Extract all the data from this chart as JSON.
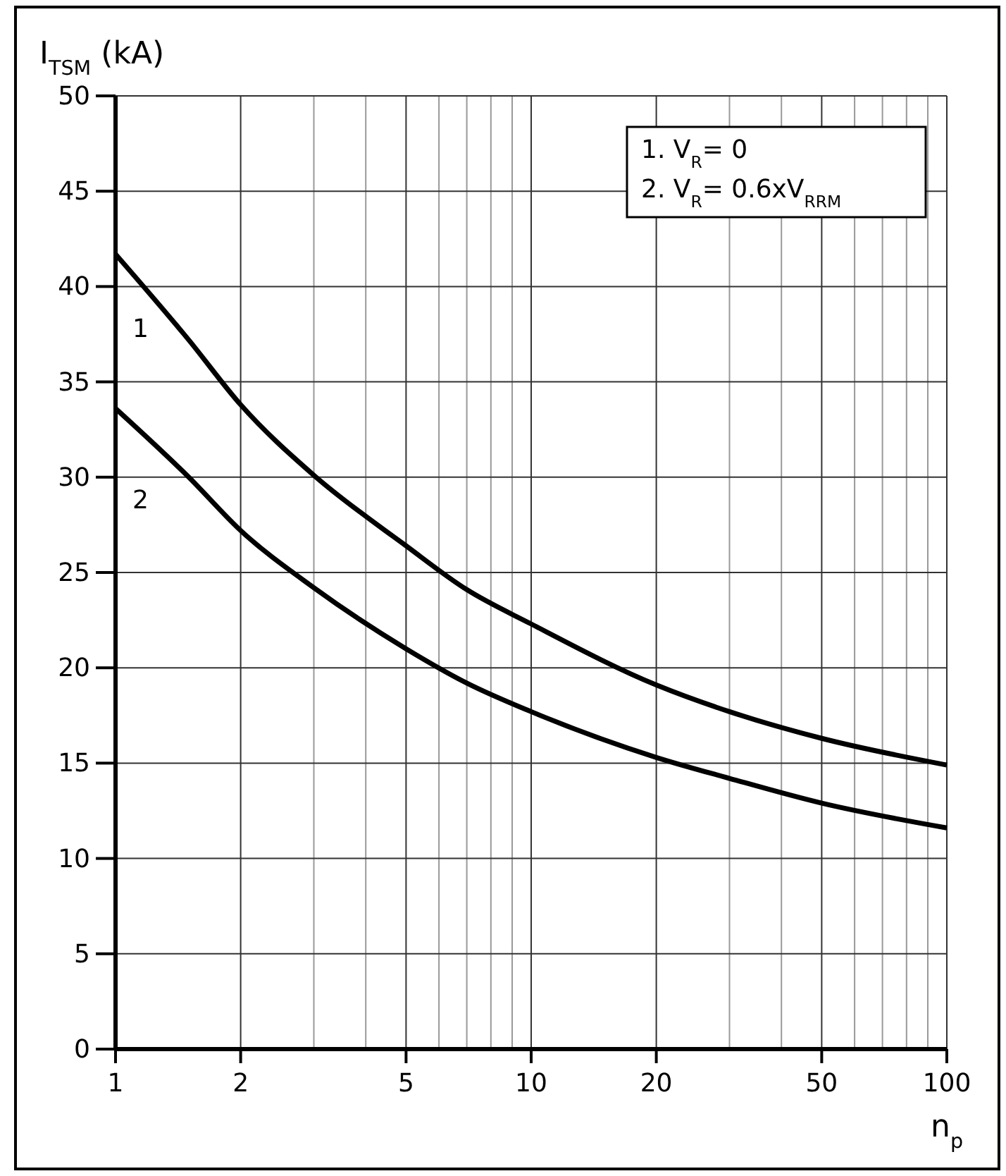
{
  "chart_data": {
    "type": "line",
    "ylabel": "I$_{TSM}$ (kA)",
    "xlabel": "n$_{p}$",
    "log": "x",
    "grid": true,
    "marker": "none",
    "line_style": "solid",
    "xlim": [
      1,
      100
    ],
    "ylim": [
      0,
      50
    ],
    "xticks": [
      1,
      2,
      {
        "value": 3,
        "label": null
      },
      {
        "value": 4,
        "label": null
      },
      5,
      {
        "value": 6,
        "label": null
      },
      {
        "value": 7,
        "label": null
      },
      {
        "value": 8,
        "label": null
      },
      {
        "value": 9,
        "label": null
      },
      10,
      20,
      {
        "value": 30,
        "label": null
      },
      {
        "value": 40,
        "label": null
      },
      50,
      {
        "value": 60,
        "label": null
      },
      {
        "value": 70,
        "label": null
      },
      {
        "value": 80,
        "label": null
      },
      {
        "value": 90,
        "label": null
      },
      100
    ],
    "yticks": [
      0,
      5,
      10,
      15,
      20,
      25,
      30,
      35,
      40,
      45,
      50
    ],
    "series": [
      {
        "name": "1",
        "color": "#000000",
        "x": [
          1,
          1.5,
          2,
          3,
          5,
          7,
          10,
          20,
          30,
          50,
          100
        ],
        "values": [
          41.7,
          37.2,
          33.8,
          30.1,
          26.4,
          24.1,
          22.3,
          19.1,
          17.7,
          16.3,
          14.9
        ]
      },
      {
        "name": "2",
        "color": "#000000",
        "x": [
          1,
          1.5,
          2,
          3,
          5,
          7,
          10,
          20,
          30,
          50,
          100
        ],
        "values": [
          33.6,
          30,
          27.2,
          24.2,
          21,
          19.2,
          17.7,
          15.3,
          14.2,
          12.9,
          11.6
        ]
      }
    ],
    "annotations": [
      "1. V$_{R}$= 0",
      "2. V$_{R}$= 0.6xV$_{RRM}$"
    ]
  }
}
